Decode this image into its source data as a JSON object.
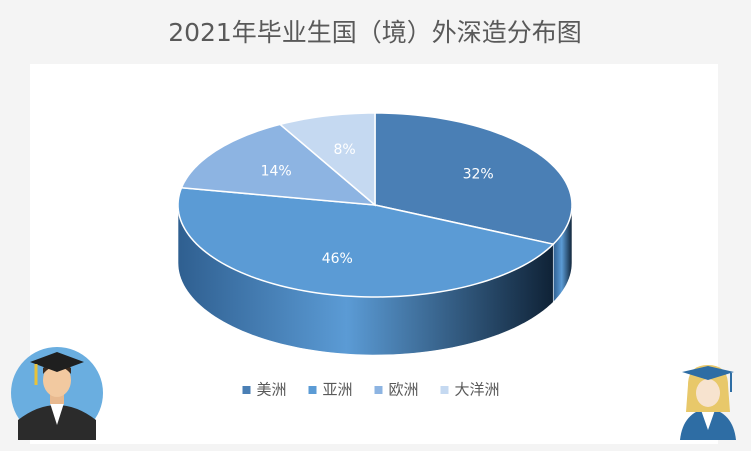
{
  "chart_data": {
    "type": "pie",
    "title": "2021年毕业生国（境）外深造分布图",
    "categories": [
      "美洲",
      "亚洲",
      "欧洲",
      "大洋洲"
    ],
    "values": [
      32,
      46,
      14,
      8
    ],
    "value_labels": [
      "32%",
      "46%",
      "14%",
      "8%"
    ],
    "colors": [
      "#4a7fb5",
      "#5b9bd5",
      "#8db4e2",
      "#c5d9f1"
    ],
    "legend": "bottom"
  }
}
